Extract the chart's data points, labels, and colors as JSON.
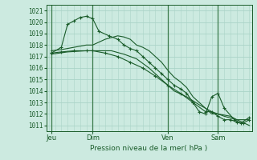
{
  "title": "Pression niveau de la mer( hPa )",
  "bg_color": "#cceae0",
  "grid_color": "#aad4c8",
  "line_color": "#1a5c2a",
  "vline_color": "#3a7a4a",
  "ylim": [
    1010.5,
    1021.5
  ],
  "yticks": [
    1011,
    1012,
    1013,
    1014,
    1015,
    1016,
    1017,
    1018,
    1019,
    1020,
    1021
  ],
  "xlim": [
    -0.2,
    16.2
  ],
  "day_labels": [
    "Jeu",
    "Dim",
    "Ven",
    "Sam"
  ],
  "day_positions": [
    0.2,
    3.5,
    9.5,
    13.5
  ],
  "vline_positions": [
    0.2,
    3.5,
    9.5,
    13.5
  ],
  "series": [
    {
      "x": [
        0.2,
        1.0,
        1.5,
        2.0,
        2.5,
        3.0,
        3.5,
        4.0,
        4.8,
        5.5,
        6.0,
        6.5,
        7.0,
        7.5,
        8.0,
        8.5,
        9.0,
        9.5,
        10.0,
        10.5,
        11.0,
        11.5,
        12.0,
        12.5,
        13.0,
        13.5,
        14.0,
        14.8,
        15.3,
        16.0
      ],
      "y": [
        1017.3,
        1017.8,
        1019.8,
        1020.1,
        1020.4,
        1020.5,
        1020.3,
        1019.2,
        1018.8,
        1018.5,
        1018.0,
        1017.7,
        1017.5,
        1017.0,
        1016.5,
        1016.0,
        1015.5,
        1015.0,
        1014.5,
        1014.2,
        1013.8,
        1013.0,
        1012.2,
        1012.0,
        1013.5,
        1013.8,
        1012.5,
        1011.5,
        1011.2,
        1011.7
      ],
      "marker": true,
      "markevery": [
        0,
        3,
        6,
        9,
        12,
        15,
        18,
        20,
        22,
        24,
        25,
        26,
        27,
        28,
        29
      ]
    },
    {
      "x": [
        0.2,
        1.0,
        2.0,
        3.0,
        3.5,
        4.5,
        5.5,
        6.0,
        6.5,
        7.0,
        7.5,
        8.0,
        8.5,
        9.0,
        9.5,
        10.0,
        10.5,
        11.0,
        11.5,
        12.0,
        12.5,
        13.0,
        13.5,
        14.5,
        15.0,
        16.0
      ],
      "y": [
        1017.5,
        1017.6,
        1017.8,
        1018.0,
        1018.0,
        1018.5,
        1018.8,
        1018.7,
        1018.5,
        1018.0,
        1017.8,
        1017.5,
        1017.0,
        1016.5,
        1015.8,
        1015.2,
        1014.8,
        1014.3,
        1013.5,
        1013.0,
        1012.5,
        1012.0,
        1012.0,
        1011.8,
        1011.5,
        1011.0
      ],
      "marker": false
    },
    {
      "x": [
        0.2,
        1.5,
        3.0,
        3.5,
        5.0,
        6.0,
        7.0,
        8.0,
        9.0,
        9.5,
        10.0,
        11.0,
        12.0,
        13.0,
        13.5,
        14.0,
        15.0,
        16.0
      ],
      "y": [
        1017.2,
        1017.4,
        1017.5,
        1017.5,
        1017.5,
        1017.2,
        1016.8,
        1016.0,
        1015.0,
        1014.5,
        1014.0,
        1013.5,
        1012.8,
        1012.2,
        1012.0,
        1011.8,
        1011.5,
        1011.5
      ],
      "marker": false
    },
    {
      "x": [
        0.2,
        1.0,
        2.0,
        3.0,
        3.5,
        4.5,
        5.5,
        6.5,
        7.5,
        8.5,
        9.5,
        10.5,
        11.5,
        12.5,
        13.0,
        13.5,
        14.0,
        14.5,
        15.0,
        15.5,
        16.0
      ],
      "y": [
        1017.3,
        1017.4,
        1017.5,
        1017.5,
        1017.5,
        1017.3,
        1017.0,
        1016.5,
        1016.0,
        1015.3,
        1014.5,
        1013.8,
        1013.0,
        1012.2,
        1012.2,
        1011.8,
        1011.5,
        1011.5,
        1011.3,
        1011.2,
        1011.5
      ],
      "marker": true,
      "markevery": [
        0,
        2,
        4,
        6,
        8,
        10,
        12,
        14,
        15,
        16,
        17,
        18,
        19,
        20
      ]
    }
  ]
}
